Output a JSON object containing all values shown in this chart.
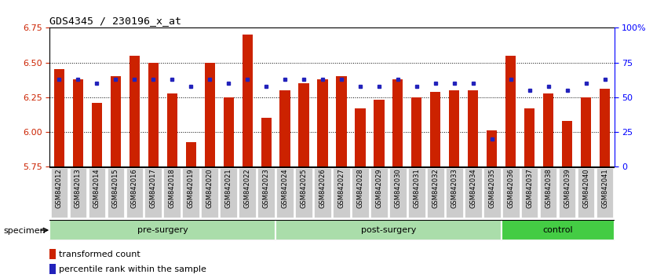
{
  "title": "GDS4345 / 230196_x_at",
  "samples": [
    "GSM842012",
    "GSM842013",
    "GSM842014",
    "GSM842015",
    "GSM842016",
    "GSM842017",
    "GSM842018",
    "GSM842019",
    "GSM842020",
    "GSM842021",
    "GSM842022",
    "GSM842023",
    "GSM842024",
    "GSM842025",
    "GSM842026",
    "GSM842027",
    "GSM842028",
    "GSM842029",
    "GSM842030",
    "GSM842031",
    "GSM842032",
    "GSM842033",
    "GSM842034",
    "GSM842035",
    "GSM842036",
    "GSM842037",
    "GSM842038",
    "GSM842039",
    "GSM842040",
    "GSM842041"
  ],
  "bar_values": [
    6.45,
    6.38,
    6.21,
    6.4,
    6.55,
    6.5,
    6.28,
    5.93,
    6.5,
    6.25,
    6.7,
    6.1,
    6.3,
    6.35,
    6.38,
    6.4,
    6.17,
    6.23,
    6.38,
    6.25,
    6.29,
    6.3,
    6.3,
    6.01,
    6.55,
    6.17,
    6.28,
    6.08,
    6.25,
    6.31
  ],
  "percentile_values": [
    63,
    63,
    60,
    63,
    63,
    63,
    63,
    58,
    63,
    60,
    63,
    58,
    63,
    63,
    63,
    63,
    58,
    58,
    63,
    58,
    60,
    60,
    60,
    20,
    63,
    55,
    58,
    55,
    60,
    63
  ],
  "ymin": 5.75,
  "ymax": 6.75,
  "bar_color": "#CC2200",
  "dot_color": "#2222BB",
  "groups": [
    {
      "label": "pre-surgery",
      "start": 0,
      "end": 11,
      "color": "#AADDAA"
    },
    {
      "label": "post-surgery",
      "start": 12,
      "end": 23,
      "color": "#AADDAA"
    },
    {
      "label": "control",
      "start": 24,
      "end": 29,
      "color": "#44CC44"
    }
  ],
  "legend_items": [
    {
      "label": "transformed count",
      "color": "#CC2200"
    },
    {
      "label": "percentile rank within the sample",
      "color": "#2222BB"
    }
  ],
  "tick_bg_color": "#CCCCCC",
  "tick_label_fontsize": 6.0,
  "title_fontsize": 9.5,
  "ytick_right_labels": [
    "0",
    "25",
    "50",
    "75",
    "100%"
  ]
}
